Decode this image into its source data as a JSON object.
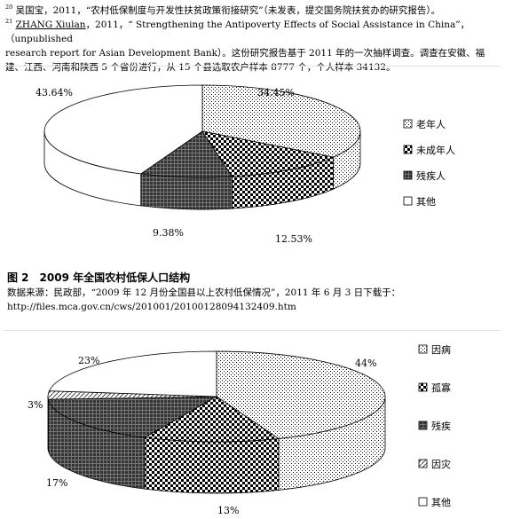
{
  "footnotes": {
    "fn20_mark": "20",
    "fn20_text": "吴国宝，2011，“农村低保制度与开发性扶贫政策衔接研究”（未发表，提交国务院扶贫办的研究报告）。",
    "fn21_mark": "21",
    "fn21_author": "ZHANG Xiulan",
    "fn21_text_a": "，2011，“ Strengthening the Antipoverty Effects of Social Assistance in China”，（unpublished",
    "fn21_text_b": "research report for Asian Development Bank）。这份研究报告基于 2011 年的一次抽样调查。调查在安徽、福",
    "fn21_text_c": "建、江西、河南和陕西 5 个省份进行，从 15 个县选取农户样本 8777 个，个人样本 34132。"
  },
  "figure2": {
    "title": "图 2　2009 年全国农村低保人口结构",
    "source_line1": "数据来源：民政部，“2009 年 12 月份全国县以上农村低保情况”，2011 年 6 月 3 日下载于：",
    "source_line2": "http://files.mca.gov.cn/cws/201001/20100128094132409.htm"
  },
  "chart_data": [
    {
      "type": "pie",
      "title": "",
      "categories": [
        "老年人",
        "未成年人",
        "残疾人",
        "其他"
      ],
      "values": [
        34.45,
        12.53,
        9.38,
        43.64
      ],
      "value_labels": [
        "34.45%",
        "12.53%",
        "9.38%",
        "43.64%"
      ],
      "patterns": [
        "dots",
        "checker",
        "dark-grid",
        "white"
      ],
      "legend": "right",
      "three_d": true
    },
    {
      "type": "pie",
      "title": "",
      "categories": [
        "因病",
        "孤寡",
        "残疾",
        "因灾",
        "其他"
      ],
      "values": [
        44,
        13,
        17,
        3,
        23
      ],
      "value_labels": [
        "44%",
        "13%",
        "17%",
        "3%",
        "23%"
      ],
      "patterns": [
        "dots",
        "checker",
        "dark-grid",
        "diag",
        "white"
      ],
      "legend": "right",
      "three_d": true
    }
  ]
}
